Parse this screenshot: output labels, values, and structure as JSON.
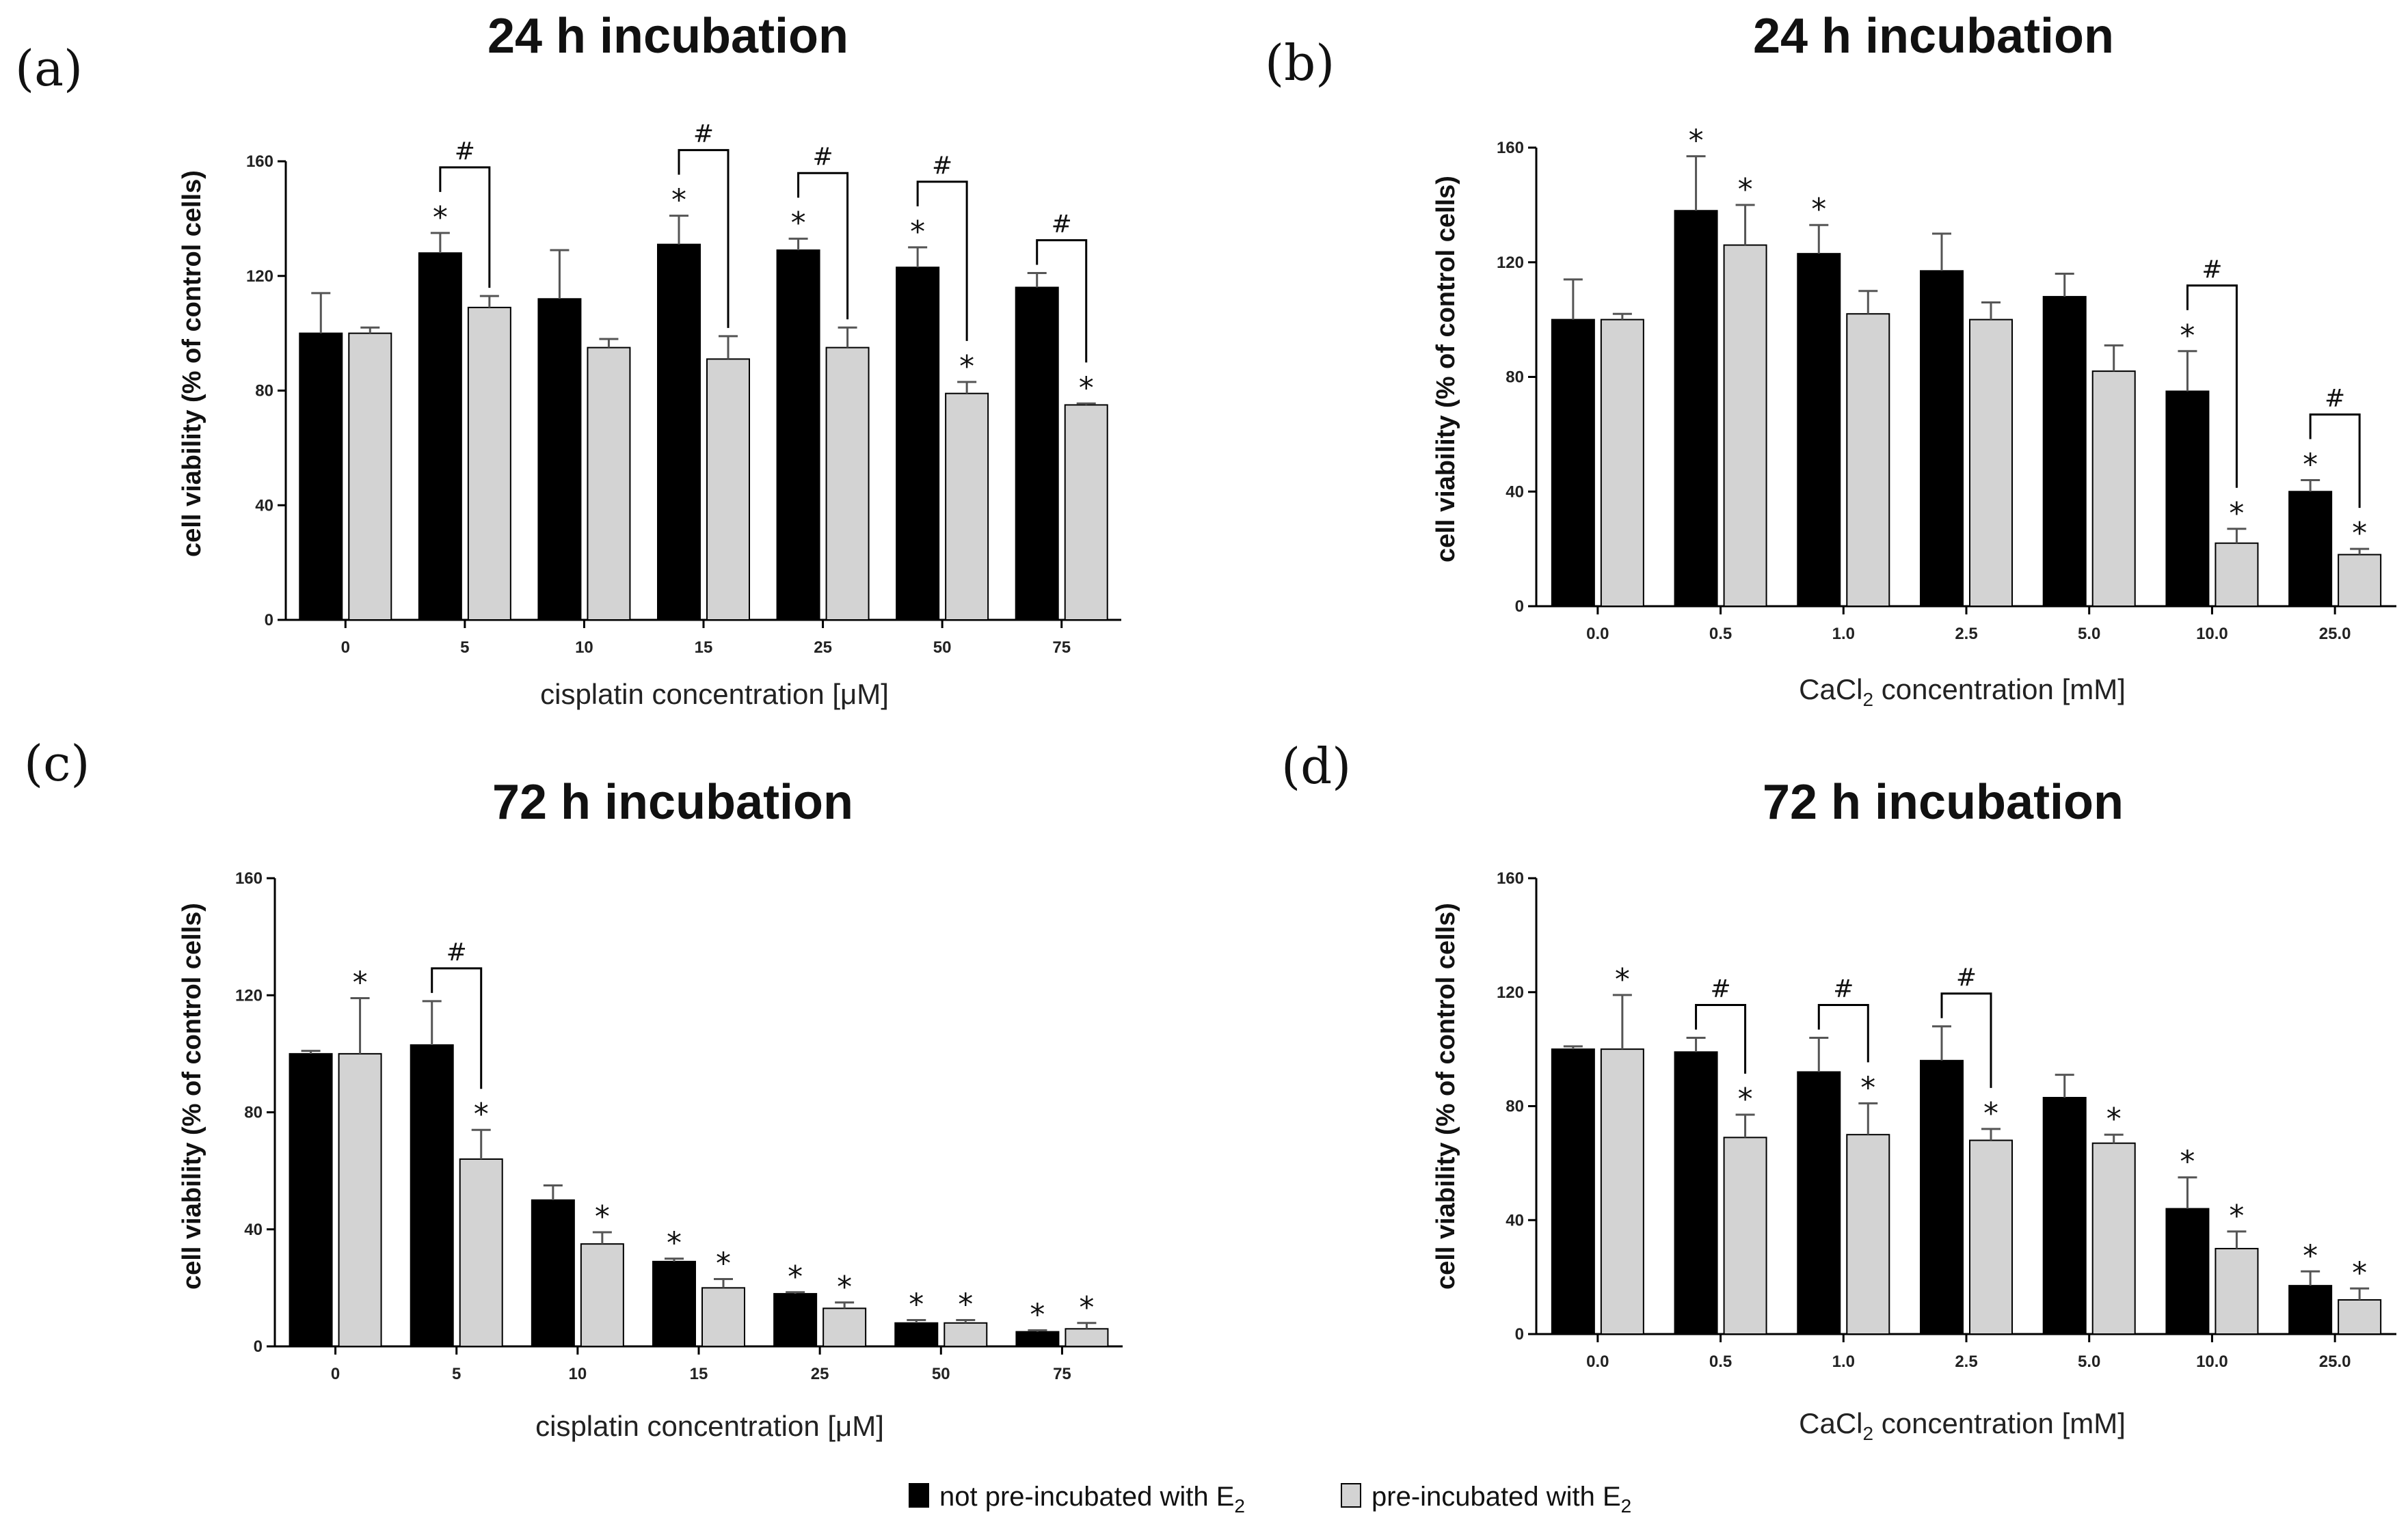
{
  "legend": {
    "items": [
      {
        "label": "not pre-incubated with E",
        "sub": "2",
        "color": "#000000"
      },
      {
        "label": "pre-incubated with E",
        "sub": "2",
        "color": "#d3d3d3"
      }
    ]
  },
  "chart_data": [
    {
      "type": "bar",
      "panel": "(a)",
      "title": "24 h incubation",
      "ylabel": "cell viability (%  of control cells)",
      "xlabel": "cisplatin concentration [μM]",
      "xlabel_sub": "",
      "xlabel_suffix": "",
      "ylim": [
        0,
        160
      ],
      "yticks": [
        0,
        40,
        80,
        120,
        160
      ],
      "categories": [
        "0",
        "5",
        "10",
        "15",
        "25",
        "50",
        "75"
      ],
      "series": [
        {
          "name": "not pre-incubated with E2",
          "color": "#000000",
          "values": [
            100,
            128,
            112,
            131,
            129,
            123,
            116
          ],
          "errors": [
            14,
            7,
            17,
            10,
            4,
            7,
            5
          ],
          "stars": [
            false,
            true,
            false,
            true,
            true,
            true,
            false
          ]
        },
        {
          "name": "pre-incubated with E2",
          "color": "#d3d3d3",
          "values": [
            100,
            109,
            95,
            91,
            95,
            79,
            75
          ],
          "errors": [
            2,
            4,
            3,
            8,
            7,
            4,
            0.5
          ],
          "stars": [
            false,
            false,
            false,
            false,
            false,
            true,
            true
          ]
        }
      ],
      "brackets": [
        {
          "category_index": 1,
          "label": "#"
        },
        {
          "category_index": 3,
          "label": "#"
        },
        {
          "category_index": 4,
          "label": "#"
        },
        {
          "category_index": 5,
          "label": "#"
        },
        {
          "category_index": 6,
          "label": "#"
        }
      ]
    },
    {
      "type": "bar",
      "panel": "(b)",
      "title": "24 h incubation",
      "ylabel": "cell viability (%  of control cells)",
      "xlabel": "CaCl",
      "xlabel_sub": "2",
      "xlabel_suffix": " concentration [mM]",
      "ylim": [
        0,
        160
      ],
      "yticks": [
        0,
        40,
        80,
        120,
        160
      ],
      "categories": [
        "0.0",
        "0.5",
        "1.0",
        "2.5",
        "5.0",
        "10.0",
        "25.0"
      ],
      "series": [
        {
          "name": "not pre-incubated with E2",
          "color": "#000000",
          "values": [
            100,
            138,
            123,
            117,
            108,
            75,
            40
          ],
          "errors": [
            14,
            19,
            10,
            13,
            8,
            14,
            4
          ],
          "stars": [
            false,
            true,
            true,
            false,
            false,
            true,
            true
          ]
        },
        {
          "name": "pre-incubated with E2",
          "color": "#d3d3d3",
          "values": [
            100,
            126,
            102,
            100,
            82,
            22,
            18
          ],
          "errors": [
            2,
            14,
            8,
            6,
            9,
            5,
            2
          ],
          "stars": [
            false,
            true,
            false,
            false,
            false,
            true,
            true
          ]
        }
      ],
      "brackets": [
        {
          "category_index": 5,
          "label": "#"
        },
        {
          "category_index": 6,
          "label": "#"
        }
      ]
    },
    {
      "type": "bar",
      "panel": "(c)",
      "title": "72 h incubation",
      "ylabel": "cell viability (% of control cells)",
      "xlabel": "cisplatin concentration [μM]",
      "xlabel_sub": "",
      "xlabel_suffix": "",
      "ylim": [
        0,
        160
      ],
      "yticks": [
        0,
        40,
        80,
        120,
        160
      ],
      "categories": [
        "0",
        "5",
        "10",
        "15",
        "25",
        "50",
        "75"
      ],
      "series": [
        {
          "name": "not pre-incubated with E2",
          "color": "#000000",
          "values": [
            100,
            103,
            50,
            29,
            18,
            8,
            5
          ],
          "errors": [
            1,
            15,
            5,
            1,
            0.5,
            1,
            0.5
          ],
          "stars": [
            false,
            false,
            false,
            true,
            true,
            true,
            true
          ]
        },
        {
          "name": "pre-incubated with E2",
          "color": "#d3d3d3",
          "values": [
            100,
            64,
            35,
            20,
            13,
            8,
            6
          ],
          "errors": [
            19,
            10,
            4,
            3,
            2,
            1,
            2
          ],
          "stars": [
            true,
            true,
            true,
            true,
            true,
            true,
            true
          ]
        }
      ],
      "brackets": [
        {
          "category_index": 1,
          "label": "#"
        }
      ]
    },
    {
      "type": "bar",
      "panel": "(d)",
      "title": "72 h incubation",
      "ylabel": "cell viability (%  of control cells)",
      "xlabel": "CaCl",
      "xlabel_sub": "2",
      "xlabel_suffix": " concentration [mM]",
      "ylim": [
        0,
        160
      ],
      "yticks": [
        0,
        40,
        80,
        120,
        160
      ],
      "categories": [
        "0.0",
        "0.5",
        "1.0",
        "2.5",
        "5.0",
        "10.0",
        "25.0"
      ],
      "series": [
        {
          "name": "not pre-incubated with E2",
          "color": "#000000",
          "values": [
            100,
            99,
            92,
            96,
            83,
            44,
            17
          ],
          "errors": [
            1,
            5,
            12,
            12,
            8,
            11,
            5
          ],
          "stars": [
            false,
            false,
            false,
            false,
            false,
            true,
            true
          ]
        },
        {
          "name": "pre-incubated with E2",
          "color": "#d3d3d3",
          "values": [
            100,
            69,
            70,
            68,
            67,
            30,
            12
          ],
          "errors": [
            19,
            8,
            11,
            4,
            3,
            6,
            4
          ],
          "stars": [
            true,
            true,
            true,
            true,
            true,
            true,
            true
          ]
        }
      ],
      "brackets": [
        {
          "category_index": 1,
          "label": "#"
        },
        {
          "category_index": 2,
          "label": "#"
        },
        {
          "category_index": 3,
          "label": "#"
        }
      ]
    }
  ]
}
